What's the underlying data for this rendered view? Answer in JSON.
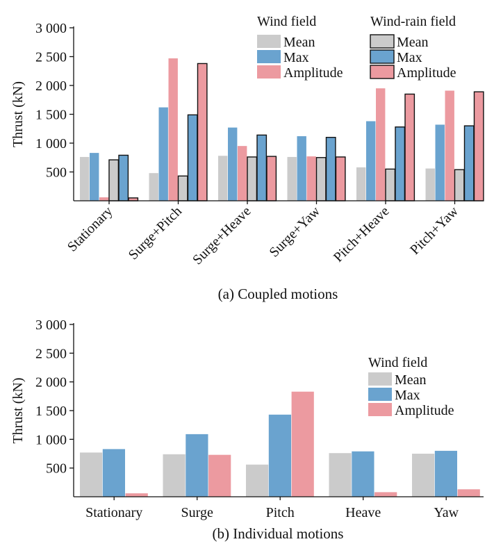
{
  "chart_data": [
    {
      "type": "bar",
      "panel": "a",
      "caption": "(a) Coupled motions",
      "ylabel": "Thrust (kN)",
      "ylim": [
        0,
        3000
      ],
      "yticks": [
        500,
        1000,
        1500,
        2000,
        2500,
        3000
      ],
      "ytick_labels": [
        "500",
        "1 000",
        "1 500",
        "2 000",
        "2 500",
        "3 000"
      ],
      "xtick_rotation": -45,
      "categories": [
        "Stationary",
        "Surge+Pitch",
        "Surge+Heave",
        "Surge+Yaw",
        "Pitch+Heave",
        "Pitch+Yaw"
      ],
      "legend": [
        {
          "title": "Wind field",
          "entries": [
            "Mean",
            "Max",
            "Amplitude"
          ]
        },
        {
          "title": "Wind-rain field",
          "entries": [
            "Mean",
            "Max",
            "Amplitude"
          ]
        }
      ],
      "series": [
        {
          "name": "Wind field Mean",
          "group": "Wind field",
          "kind": "Mean",
          "outlined": false,
          "values": [
            760,
            480,
            780,
            760,
            580,
            560
          ]
        },
        {
          "name": "Wind field Max",
          "group": "Wind field",
          "kind": "Max",
          "outlined": false,
          "values": [
            830,
            1620,
            1270,
            1120,
            1380,
            1320
          ]
        },
        {
          "name": "Wind field Amplitude",
          "group": "Wind field",
          "kind": "Amplitude",
          "outlined": false,
          "values": [
            60,
            2470,
            950,
            770,
            1950,
            1910
          ]
        },
        {
          "name": "Wind-rain field Mean",
          "group": "Wind-rain field",
          "kind": "Mean",
          "outlined": true,
          "values": [
            710,
            430,
            760,
            750,
            550,
            540
          ]
        },
        {
          "name": "Wind-rain field Max",
          "group": "Wind-rain field",
          "kind": "Max",
          "outlined": true,
          "values": [
            790,
            1490,
            1140,
            1100,
            1280,
            1300
          ]
        },
        {
          "name": "Wind-rain field Amplitude",
          "group": "Wind-rain field",
          "kind": "Amplitude",
          "outlined": true,
          "values": [
            50,
            2380,
            770,
            760,
            1850,
            1890
          ]
        }
      ]
    },
    {
      "type": "bar",
      "panel": "b",
      "caption": "(b) Individual motions",
      "ylabel": "Thrust (kN)",
      "ylim": [
        0,
        3000
      ],
      "yticks": [
        500,
        1000,
        1500,
        2000,
        2500,
        3000
      ],
      "ytick_labels": [
        "500",
        "1 000",
        "1 500",
        "2 000",
        "2 500",
        "3 000"
      ],
      "xtick_rotation": 0,
      "categories": [
        "Stationary",
        "Surge",
        "Pitch",
        "Heave",
        "Yaw"
      ],
      "legend": [
        {
          "title": "Wind field",
          "entries": [
            "Mean",
            "Max",
            "Amplitude"
          ]
        }
      ],
      "series": [
        {
          "name": "Wind field Mean",
          "group": "Wind field",
          "kind": "Mean",
          "outlined": false,
          "values": [
            770,
            740,
            560,
            760,
            750
          ]
        },
        {
          "name": "Wind field Max",
          "group": "Wind field",
          "kind": "Max",
          "outlined": false,
          "values": [
            830,
            1090,
            1430,
            790,
            800
          ]
        },
        {
          "name": "Wind field Amplitude",
          "group": "Wind field",
          "kind": "Amplitude",
          "outlined": false,
          "values": [
            60,
            730,
            1830,
            80,
            130
          ]
        }
      ]
    }
  ],
  "colors": {
    "Mean": "#cbcbcb",
    "Max": "#6aa3cf",
    "Amplitude": "#ec9aa0",
    "outline": "#111111",
    "axis": "#111111"
  }
}
